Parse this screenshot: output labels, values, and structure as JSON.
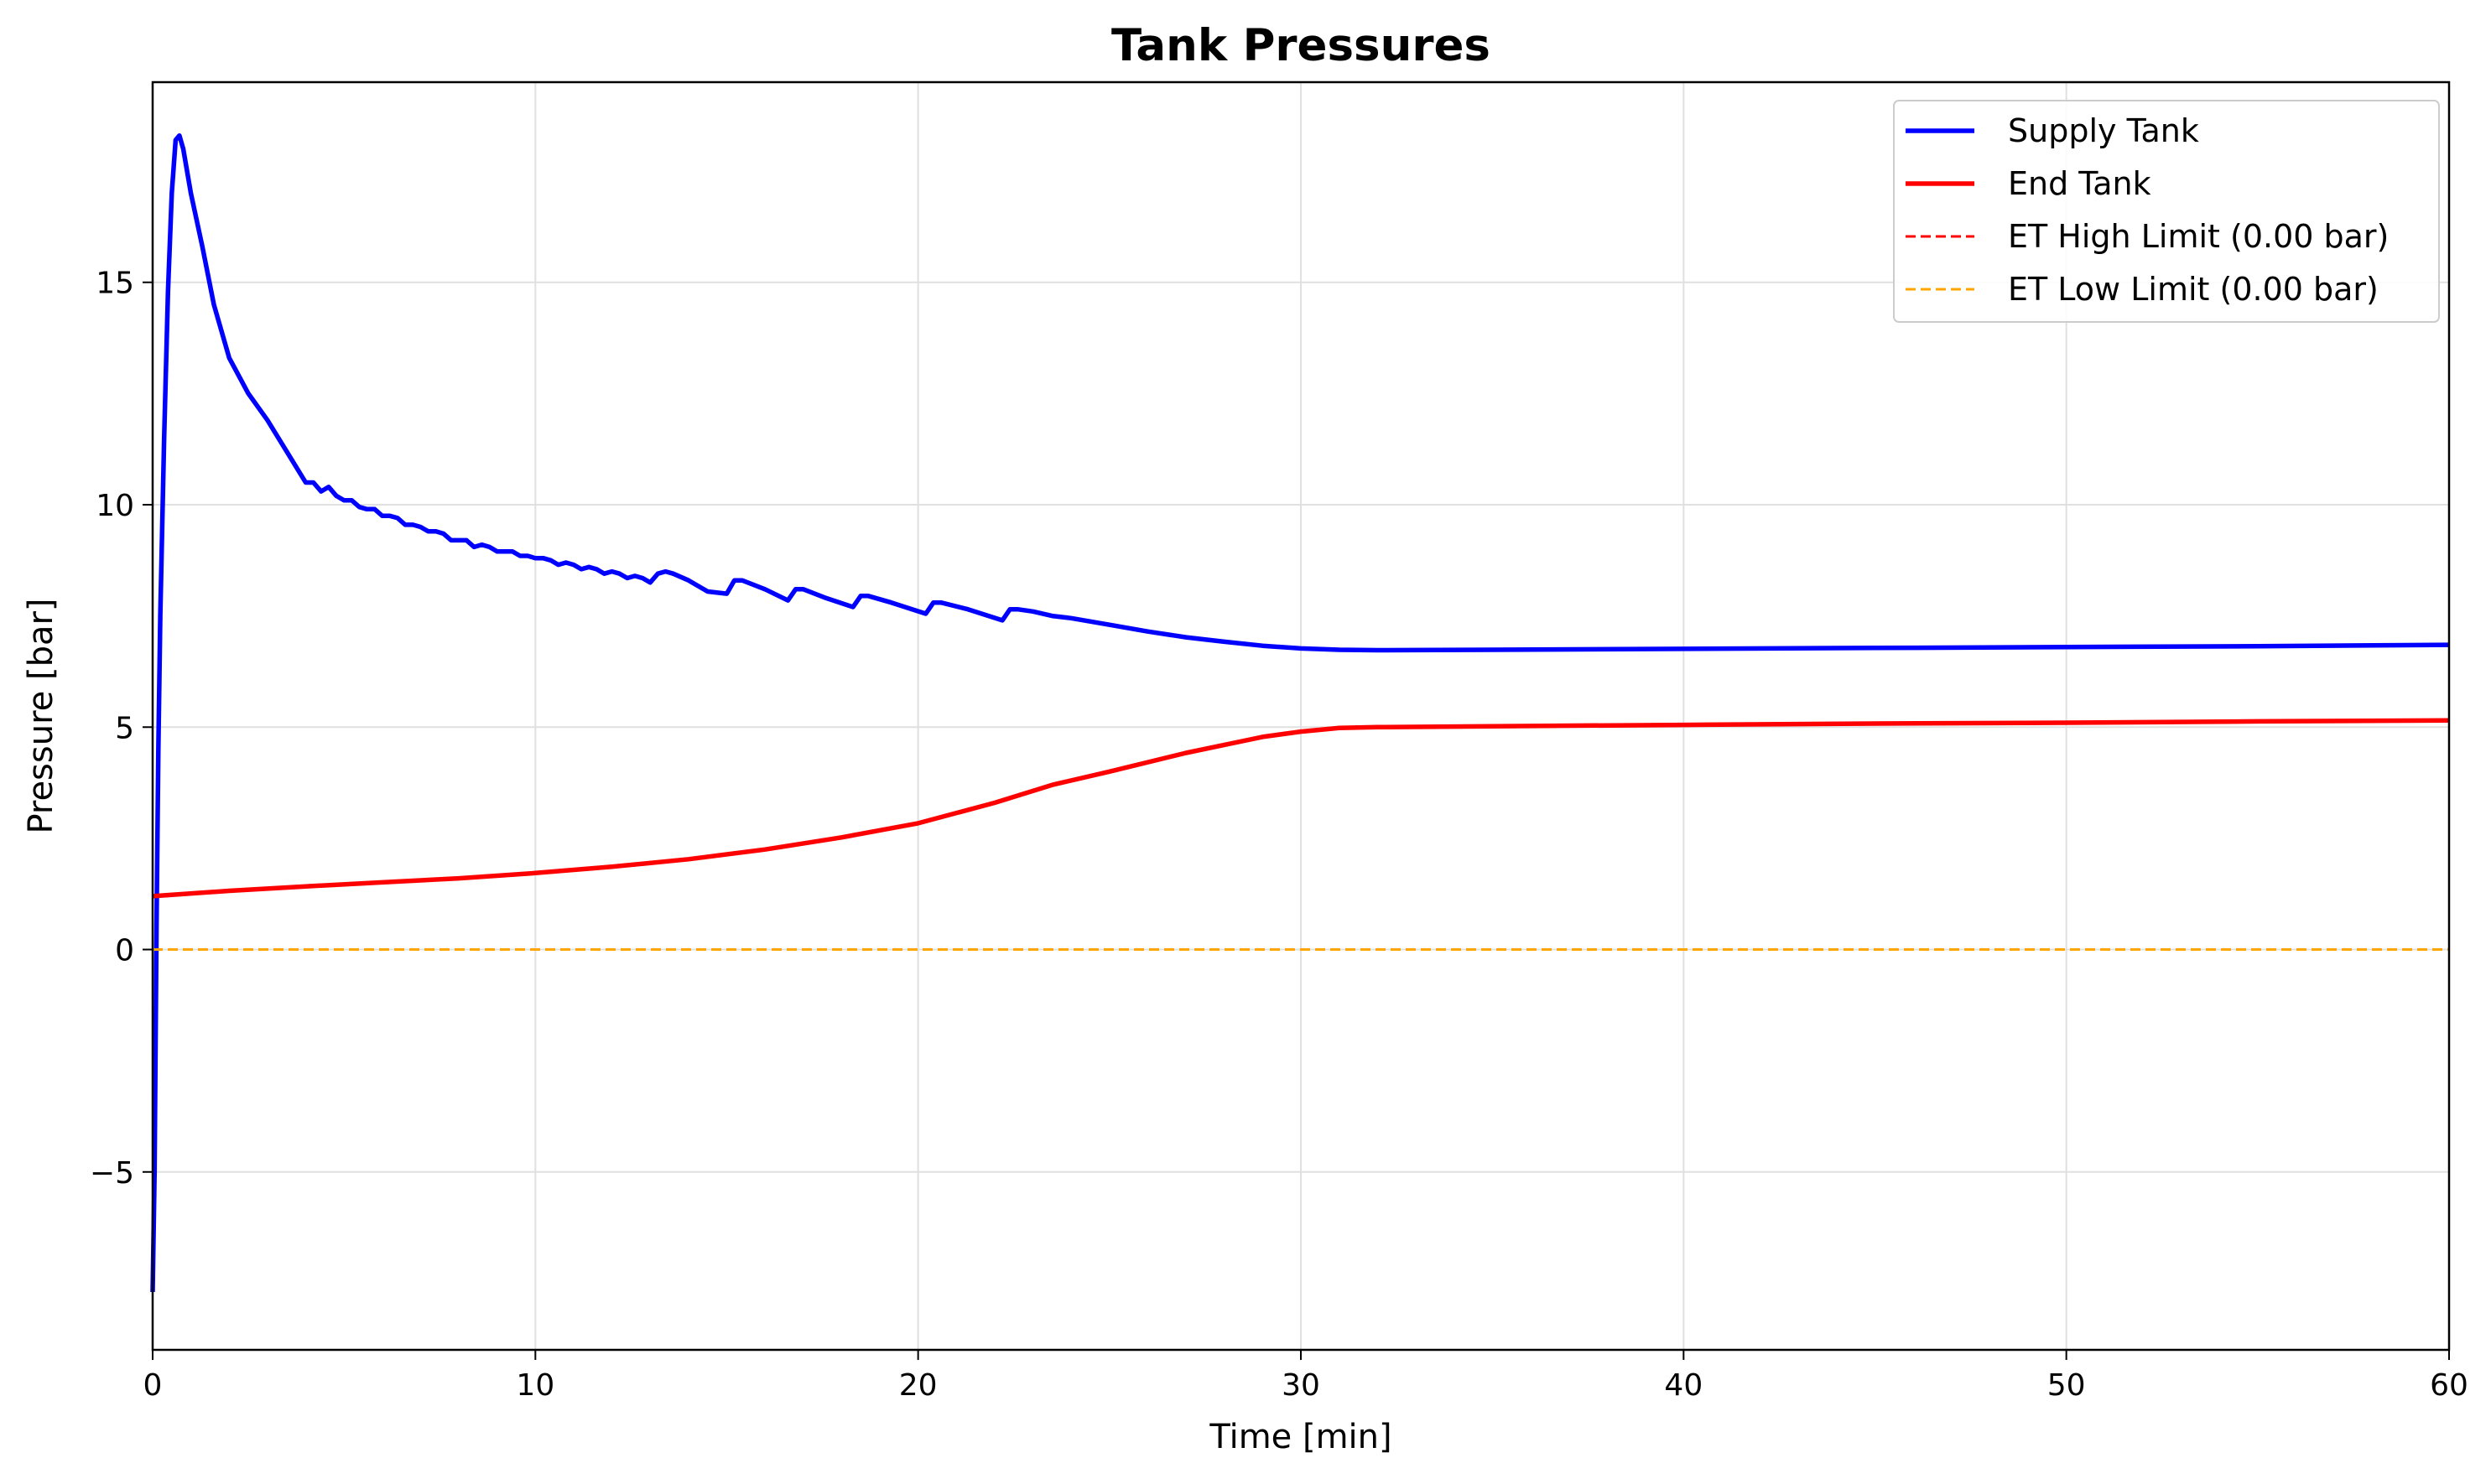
{
  "chart_data": {
    "type": "line",
    "title": "Tank Pressures",
    "xlabel": "Time [min]",
    "ylabel": "Pressure [bar]",
    "xlim": [
      0,
      60
    ],
    "ylim": [
      -9,
      19.5
    ],
    "xticks": [
      0,
      10,
      20,
      30,
      40,
      50,
      60
    ],
    "yticks": [
      -5,
      0,
      5,
      10,
      15
    ],
    "xtick_labels": [
      "0",
      "10",
      "20",
      "30",
      "40",
      "50",
      "60"
    ],
    "ytick_labels": [
      "−5",
      "0",
      "5",
      "10",
      "15"
    ],
    "grid": true,
    "legend_position": "top-right",
    "series": [
      {
        "name": "Supply Tank",
        "color": "#0000ff",
        "style": "solid",
        "x": [
          0,
          0.05,
          0.1,
          0.15,
          0.2,
          0.3,
          0.4,
          0.5,
          0.6,
          0.7,
          0.8,
          1.0,
          1.3,
          1.6,
          2.0,
          2.5,
          3.0,
          3.5,
          4.0,
          4.2,
          4.4,
          4.6,
          4.8,
          5.0,
          5.2,
          5.4,
          5.6,
          5.8,
          6.0,
          6.2,
          6.4,
          6.6,
          6.8,
          7.0,
          7.2,
          7.4,
          7.6,
          7.8,
          8.0,
          8.2,
          8.4,
          8.6,
          8.8,
          9.0,
          9.2,
          9.4,
          9.6,
          9.8,
          10.0,
          10.2,
          10.4,
          10.6,
          10.8,
          11.0,
          11.2,
          11.4,
          11.6,
          11.8,
          12.0,
          12.2,
          12.4,
          12.6,
          12.8,
          13.0,
          13.2,
          13.4,
          13.6,
          14.0,
          14.5,
          15.0,
          15.2,
          15.4,
          16.0,
          16.6,
          16.8,
          17.0,
          17.6,
          18.3,
          18.5,
          18.7,
          19.3,
          20.2,
          20.4,
          20.6,
          21.3,
          22.2,
          22.4,
          22.6,
          23.0,
          23.5,
          24.0,
          25.0,
          26.0,
          27.0,
          28.0,
          29.0,
          30.0,
          31.0,
          32.0,
          35.0,
          40.0,
          45.0,
          50.0,
          55.0,
          60.0
        ],
        "values": [
          -7.7,
          -5.0,
          0.5,
          4.5,
          7.5,
          11.5,
          14.8,
          17.0,
          18.2,
          18.3,
          18.0,
          17.0,
          15.8,
          14.5,
          13.3,
          12.5,
          11.9,
          11.2,
          10.5,
          10.5,
          10.3,
          10.4,
          10.2,
          10.1,
          10.1,
          9.95,
          9.9,
          9.9,
          9.75,
          9.75,
          9.7,
          9.55,
          9.55,
          9.5,
          9.4,
          9.4,
          9.35,
          9.2,
          9.2,
          9.2,
          9.05,
          9.1,
          9.05,
          8.95,
          8.95,
          8.95,
          8.85,
          8.85,
          8.8,
          8.8,
          8.75,
          8.65,
          8.7,
          8.65,
          8.55,
          8.6,
          8.55,
          8.45,
          8.5,
          8.45,
          8.35,
          8.4,
          8.35,
          8.25,
          8.45,
          8.5,
          8.45,
          8.3,
          8.05,
          8.0,
          8.3,
          8.3,
          8.1,
          7.85,
          8.1,
          8.1,
          7.9,
          7.7,
          7.95,
          7.95,
          7.8,
          7.55,
          7.8,
          7.8,
          7.65,
          7.4,
          7.65,
          7.65,
          7.6,
          7.5,
          7.45,
          7.3,
          7.15,
          7.02,
          6.92,
          6.83,
          6.77,
          6.74,
          6.73,
          6.74,
          6.76,
          6.78,
          6.8,
          6.82,
          6.85
        ]
      },
      {
        "name": "End Tank",
        "color": "#ff0000",
        "style": "solid",
        "x": [
          0,
          2,
          4,
          6,
          8,
          10,
          12,
          14,
          16,
          18,
          20,
          22,
          23.5,
          25,
          27,
          29,
          30,
          31,
          32,
          35,
          40,
          45,
          50,
          55,
          60
        ],
        "values": [
          1.2,
          1.32,
          1.42,
          1.51,
          1.6,
          1.72,
          1.86,
          2.03,
          2.25,
          2.52,
          2.84,
          3.3,
          3.7,
          4.0,
          4.42,
          4.78,
          4.9,
          4.98,
          5.0,
          5.02,
          5.05,
          5.08,
          5.1,
          5.13,
          5.15
        ]
      },
      {
        "name": "ET High Limit (0.00 bar)",
        "color": "#ff0000",
        "style": "dashed",
        "x": [
          0,
          60
        ],
        "values": [
          0,
          0
        ]
      },
      {
        "name": "ET Low Limit (0.00 bar)",
        "color": "#ffa500",
        "style": "dashed",
        "x": [
          0,
          60
        ],
        "values": [
          0,
          0
        ]
      }
    ]
  }
}
